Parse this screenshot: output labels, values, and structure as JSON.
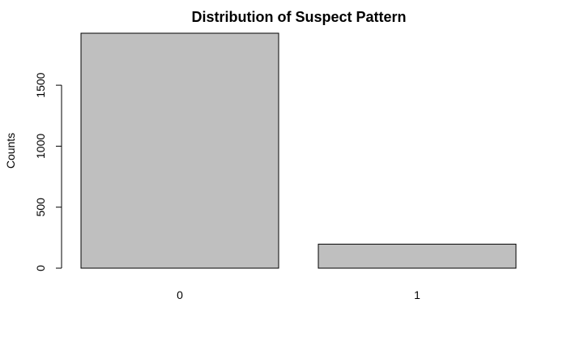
{
  "chart_data": {
    "type": "bar",
    "title": "Distribution of Suspect Pattern",
    "xlabel": "",
    "ylabel": "Counts",
    "categories": [
      "0",
      "1"
    ],
    "values": [
      1926,
      197
    ],
    "ylim": [
      0,
      1926
    ],
    "yticks": [
      0,
      500,
      1000,
      1500
    ],
    "grid": false,
    "colors": {
      "bar_fill": "#bfbfbf",
      "bar_stroke": "#000000"
    }
  }
}
